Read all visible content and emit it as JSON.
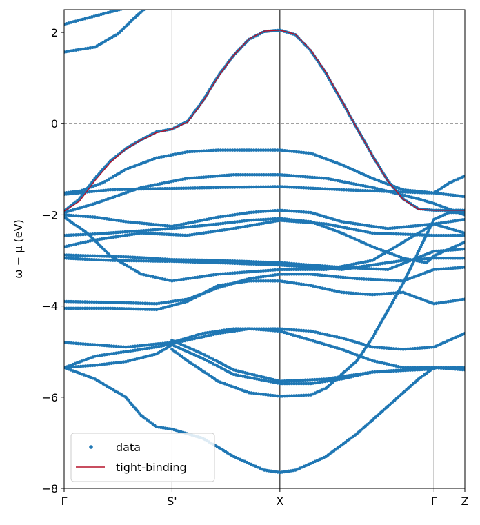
{
  "chart_data": {
    "type": "scatter",
    "title": "",
    "ylabel": "ω − μ (eV)",
    "xlabel": "",
    "ylim": [
      -8,
      2.5
    ],
    "xlim": [
      0,
      2.6
    ],
    "yticks": [
      -8,
      -6,
      -4,
      -2,
      0,
      2
    ],
    "xticks": [
      {
        "label": "Γ",
        "x": 0
      },
      {
        "label": "S'",
        "x": 0.7
      },
      {
        "label": "X",
        "x": 1.4
      },
      {
        "label": "Γ",
        "x": 2.4
      },
      {
        "label": "Z",
        "x": 2.6
      }
    ],
    "fermi_level": 0,
    "grid": false,
    "legend": {
      "placement": "lower-left",
      "entries": [
        {
          "label": "data",
          "kind": "marker",
          "color": "#1f77b4"
        },
        {
          "label": "tight-binding",
          "kind": "line",
          "color": "#b5122a"
        }
      ]
    },
    "series": [
      {
        "name": "data",
        "kind": "scatter",
        "color": "#1f77b4",
        "bands": [
          [
            [
              0,
              2.18
            ],
            [
              0.3,
              2.45
            ],
            [
              0.5,
              2.62
            ]
          ],
          [
            [
              0,
              1.57
            ],
            [
              0.2,
              1.68
            ],
            [
              0.35,
              1.97
            ],
            [
              0.45,
              2.3
            ],
            [
              0.55,
              2.6
            ]
          ],
          [
            [
              0,
              -1.92
            ],
            [
              0.1,
              -1.65
            ],
            [
              0.2,
              -1.2
            ],
            [
              0.3,
              -0.82
            ],
            [
              0.4,
              -0.55
            ],
            [
              0.5,
              -0.35
            ],
            [
              0.6,
              -0.18
            ],
            [
              0.7,
              -0.12
            ],
            [
              0.8,
              0.05
            ],
            [
              0.9,
              0.5
            ],
            [
              1.0,
              1.05
            ],
            [
              1.1,
              1.5
            ],
            [
              1.2,
              1.85
            ],
            [
              1.3,
              2.02
            ],
            [
              1.4,
              2.05
            ],
            [
              1.5,
              1.95
            ],
            [
              1.6,
              1.6
            ],
            [
              1.7,
              1.1
            ],
            [
              1.8,
              0.5
            ],
            [
              1.9,
              -0.1
            ],
            [
              2.0,
              -0.7
            ],
            [
              2.1,
              -1.25
            ],
            [
              2.2,
              -1.65
            ],
            [
              2.3,
              -1.87
            ],
            [
              2.4,
              -1.9
            ],
            [
              2.5,
              -1.9
            ],
            [
              2.6,
              -1.9
            ]
          ],
          [
            [
              0,
              -1.52
            ],
            [
              0.1,
              -1.48
            ],
            [
              0.25,
              -1.3
            ],
            [
              0.4,
              -1.0
            ],
            [
              0.6,
              -0.75
            ],
            [
              0.8,
              -0.62
            ],
            [
              1.0,
              -0.58
            ],
            [
              1.2,
              -0.58
            ],
            [
              1.4,
              -0.58
            ],
            [
              1.6,
              -0.65
            ],
            [
              1.8,
              -0.9
            ],
            [
              2.0,
              -1.2
            ],
            [
              2.2,
              -1.45
            ],
            [
              2.4,
              -1.52
            ],
            [
              2.5,
              -1.3
            ],
            [
              2.6,
              -1.15
            ]
          ],
          [
            [
              0,
              -1.55
            ],
            [
              0.3,
              -1.45
            ],
            [
              0.7,
              -1.42
            ],
            [
              1.0,
              -1.4
            ],
            [
              1.4,
              -1.38
            ],
            [
              1.8,
              -1.45
            ],
            [
              2.2,
              -1.5
            ],
            [
              2.4,
              -1.52
            ],
            [
              2.6,
              -1.6
            ]
          ],
          [
            [
              0,
              -1.95
            ],
            [
              0.2,
              -1.75
            ],
            [
              0.5,
              -1.4
            ],
            [
              0.8,
              -1.2
            ],
            [
              1.1,
              -1.12
            ],
            [
              1.4,
              -1.12
            ],
            [
              1.7,
              -1.2
            ],
            [
              2.0,
              -1.4
            ],
            [
              2.3,
              -1.65
            ],
            [
              2.4,
              -1.75
            ],
            [
              2.6,
              -2.0
            ]
          ],
          [
            [
              0,
              -2.0
            ],
            [
              0.2,
              -2.05
            ],
            [
              0.4,
              -2.15
            ],
            [
              0.7,
              -2.25
            ],
            [
              1.0,
              -2.05
            ],
            [
              1.2,
              -1.95
            ],
            [
              1.4,
              -1.9
            ],
            [
              1.6,
              -1.95
            ],
            [
              1.8,
              -2.15
            ],
            [
              2.1,
              -2.3
            ],
            [
              2.4,
              -2.2
            ],
            [
              2.6,
              -2.4
            ]
          ],
          [
            [
              0,
              -2.45
            ],
            [
              0.2,
              -2.42
            ],
            [
              0.5,
              -2.35
            ],
            [
              0.7,
              -2.3
            ],
            [
              1.0,
              -2.2
            ],
            [
              1.2,
              -2.12
            ],
            [
              1.4,
              -2.08
            ],
            [
              1.6,
              -2.15
            ],
            [
              1.8,
              -2.4
            ],
            [
              2.0,
              -2.7
            ],
            [
              2.2,
              -2.95
            ],
            [
              2.35,
              -3.05
            ],
            [
              2.4,
              -2.9
            ],
            [
              2.6,
              -2.6
            ]
          ],
          [
            [
              0,
              -2.7
            ],
            [
              0.2,
              -2.55
            ],
            [
              0.5,
              -2.4
            ],
            [
              0.8,
              -2.45
            ],
            [
              1.1,
              -2.3
            ],
            [
              1.4,
              -2.12
            ],
            [
              1.7,
              -2.2
            ],
            [
              2.0,
              -2.4
            ],
            [
              2.4,
              -2.45
            ],
            [
              2.6,
              -2.45
            ]
          ],
          [
            [
              0,
              -2.05
            ],
            [
              0.15,
              -2.4
            ],
            [
              0.3,
              -2.9
            ],
            [
              0.5,
              -3.3
            ],
            [
              0.7,
              -3.45
            ],
            [
              1.0,
              -3.3
            ],
            [
              1.4,
              -3.2
            ],
            [
              1.7,
              -3.2
            ],
            [
              2.0,
              -3.0
            ],
            [
              2.2,
              -2.6
            ],
            [
              2.4,
              -2.2
            ],
            [
              2.6,
              -2.1
            ]
          ],
          [
            [
              0,
              -2.88
            ],
            [
              0.4,
              -2.92
            ],
            [
              0.7,
              -2.98
            ],
            [
              1.0,
              -3.0
            ],
            [
              1.4,
              -3.05
            ],
            [
              1.8,
              -3.15
            ],
            [
              2.1,
              -3.2
            ],
            [
              2.4,
              -2.8
            ],
            [
              2.6,
              -2.75
            ]
          ],
          [
            [
              0,
              -2.95
            ],
            [
              0.3,
              -3.0
            ],
            [
              0.7,
              -3.02
            ],
            [
              1.0,
              -3.05
            ],
            [
              1.4,
              -3.1
            ],
            [
              1.8,
              -3.2
            ],
            [
              2.2,
              -3.0
            ],
            [
              2.4,
              -2.95
            ],
            [
              2.6,
              -2.95
            ]
          ],
          [
            [
              0,
              -3.9
            ],
            [
              0.3,
              -3.92
            ],
            [
              0.6,
              -3.95
            ],
            [
              0.8,
              -3.85
            ],
            [
              1.0,
              -3.6
            ],
            [
              1.2,
              -3.4
            ],
            [
              1.4,
              -3.3
            ],
            [
              1.6,
              -3.3
            ],
            [
              1.9,
              -3.4
            ],
            [
              2.2,
              -3.45
            ],
            [
              2.4,
              -3.2
            ],
            [
              2.6,
              -3.15
            ]
          ],
          [
            [
              0,
              -4.05
            ],
            [
              0.3,
              -4.05
            ],
            [
              0.6,
              -4.08
            ],
            [
              0.8,
              -3.9
            ],
            [
              1.0,
              -3.55
            ],
            [
              1.2,
              -3.45
            ],
            [
              1.4,
              -3.45
            ],
            [
              1.6,
              -3.55
            ],
            [
              1.8,
              -3.7
            ],
            [
              2.0,
              -3.75
            ],
            [
              2.2,
              -3.7
            ],
            [
              2.4,
              -3.95
            ],
            [
              2.6,
              -3.85
            ]
          ],
          [
            [
              0,
              -4.8
            ],
            [
              0.2,
              -4.85
            ],
            [
              0.4,
              -4.9
            ],
            [
              0.7,
              -4.8
            ],
            [
              0.9,
              -4.6
            ],
            [
              1.1,
              -4.5
            ],
            [
              1.4,
              -4.5
            ],
            [
              1.6,
              -4.55
            ],
            [
              1.8,
              -4.7
            ],
            [
              2.0,
              -4.9
            ],
            [
              2.2,
              -4.95
            ],
            [
              2.4,
              -4.9
            ],
            [
              2.6,
              -4.6
            ]
          ],
          [
            [
              0,
              -5.35
            ],
            [
              0.2,
              -5.1
            ],
            [
              0.4,
              -5.0
            ],
            [
              0.6,
              -4.9
            ],
            [
              0.8,
              -4.75
            ],
            [
              1.0,
              -4.6
            ],
            [
              1.2,
              -4.5
            ],
            [
              1.4,
              -4.55
            ],
            [
              1.6,
              -4.75
            ],
            [
              1.8,
              -4.95
            ],
            [
              2.0,
              -5.2
            ],
            [
              2.2,
              -5.35
            ],
            [
              2.4,
              -5.35
            ],
            [
              2.6,
              -5.35
            ]
          ],
          [
            [
              0,
              -5.35
            ],
            [
              0.2,
              -5.3
            ],
            [
              0.4,
              -5.22
            ],
            [
              0.6,
              -5.05
            ],
            [
              0.7,
              -4.85
            ],
            [
              0.9,
              -5.15
            ],
            [
              1.1,
              -5.5
            ],
            [
              1.4,
              -5.7
            ],
            [
              1.6,
              -5.7
            ],
            [
              1.8,
              -5.6
            ],
            [
              2.0,
              -5.45
            ],
            [
              2.2,
              -5.4
            ],
            [
              2.4,
              -5.35
            ],
            [
              2.6,
              -5.4
            ]
          ],
          [
            [
              0.7,
              -4.75
            ],
            [
              0.9,
              -5.05
            ],
            [
              1.1,
              -5.4
            ],
            [
              1.4,
              -5.65
            ],
            [
              1.7,
              -5.6
            ],
            [
              2.0,
              -5.45
            ],
            [
              2.4,
              -5.38
            ]
          ],
          [
            [
              0,
              -5.35
            ],
            [
              0.2,
              -5.6
            ],
            [
              0.4,
              -6.0
            ],
            [
              0.5,
              -6.4
            ],
            [
              0.6,
              -6.65
            ],
            [
              0.7,
              -6.7
            ],
            [
              0.9,
              -6.9
            ],
            [
              1.1,
              -7.3
            ],
            [
              1.3,
              -7.6
            ],
            [
              1.4,
              -7.65
            ],
            [
              1.5,
              -7.6
            ],
            [
              1.7,
              -7.3
            ],
            [
              1.9,
              -6.8
            ],
            [
              2.1,
              -6.2
            ],
            [
              2.3,
              -5.6
            ],
            [
              2.4,
              -5.35
            ]
          ],
          [
            [
              0.7,
              -4.95
            ],
            [
              0.8,
              -5.2
            ],
            [
              1.0,
              -5.65
            ],
            [
              1.2,
              -5.9
            ],
            [
              1.4,
              -5.98
            ],
            [
              1.6,
              -5.95
            ],
            [
              1.7,
              -5.8
            ],
            [
              1.8,
              -5.5
            ],
            [
              1.9,
              -5.2
            ],
            [
              2.0,
              -4.7
            ],
            [
              2.1,
              -4.1
            ],
            [
              2.2,
              -3.5
            ],
            [
              2.3,
              -2.8
            ],
            [
              2.4,
              -2.1
            ],
            [
              2.5,
              -1.95
            ],
            [
              2.6,
              -1.95
            ]
          ]
        ]
      },
      {
        "name": "tight-binding",
        "kind": "line",
        "color": "#b5122a",
        "points": [
          [
            0,
            -1.92
          ],
          [
            0.1,
            -1.7
          ],
          [
            0.2,
            -1.25
          ],
          [
            0.3,
            -0.85
          ],
          [
            0.4,
            -0.56
          ],
          [
            0.5,
            -0.36
          ],
          [
            0.6,
            -0.2
          ],
          [
            0.7,
            -0.12
          ],
          [
            0.8,
            0.03
          ],
          [
            0.9,
            0.48
          ],
          [
            1.0,
            1.03
          ],
          [
            1.1,
            1.5
          ],
          [
            1.2,
            1.86
          ],
          [
            1.3,
            2.03
          ],
          [
            1.4,
            2.05
          ],
          [
            1.5,
            1.96
          ],
          [
            1.6,
            1.62
          ],
          [
            1.7,
            1.12
          ],
          [
            1.8,
            0.52
          ],
          [
            1.9,
            -0.1
          ],
          [
            2.0,
            -0.7
          ],
          [
            2.1,
            -1.26
          ],
          [
            2.2,
            -1.66
          ],
          [
            2.3,
            -1.88
          ],
          [
            2.4,
            -1.9
          ],
          [
            2.5,
            -1.9
          ],
          [
            2.6,
            -1.9
          ]
        ]
      }
    ]
  }
}
